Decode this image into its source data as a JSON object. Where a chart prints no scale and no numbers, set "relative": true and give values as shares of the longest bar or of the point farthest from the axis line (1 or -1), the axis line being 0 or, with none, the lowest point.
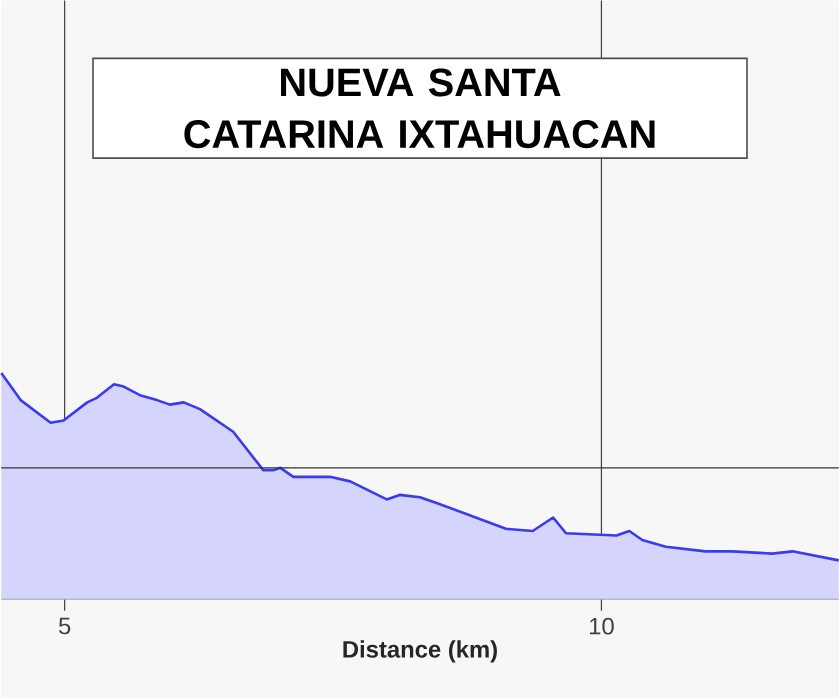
{
  "chart_data": {
    "type": "area",
    "title": "NUEVA SANTA CATARINA IXTAHUACAN",
    "xlabel": "Distance (km)",
    "relative": true,
    "x": [
      4.41,
      4.59,
      4.87,
      4.99,
      5.21,
      5.3,
      5.46,
      5.55,
      5.71,
      5.86,
      5.98,
      6.11,
      6.26,
      6.57,
      6.85,
      6.95,
      7.01,
      7.13,
      7.47,
      7.66,
      8.0,
      8.12,
      8.31,
      8.49,
      9.11,
      9.36,
      9.55,
      9.67,
      10.14,
      10.26,
      10.38,
      10.6,
      10.97,
      11.22,
      11.59,
      11.78,
      12.21
    ],
    "series": [
      {
        "color": "#3a3af0",
        "values": [
          1.0,
          0.88,
          0.78,
          0.79,
          0.87,
          0.89,
          0.95,
          0.94,
          0.9,
          0.88,
          0.86,
          0.87,
          0.84,
          0.74,
          0.57,
          0.57,
          0.58,
          0.54,
          0.54,
          0.52,
          0.44,
          0.46,
          0.45,
          0.42,
          0.31,
          0.3,
          0.36,
          0.29,
          0.28,
          0.3,
          0.26,
          0.23,
          0.21,
          0.21,
          0.2,
          0.21,
          0.17
        ]
      }
    ],
    "xlim": [
      4.41,
      12.21
    ],
    "xticks": [
      5,
      10
    ],
    "grid": "x",
    "ref_lines": [
      {
        "axis": "y",
        "value": 0.58,
        "color": "#333333"
      }
    ]
  }
}
